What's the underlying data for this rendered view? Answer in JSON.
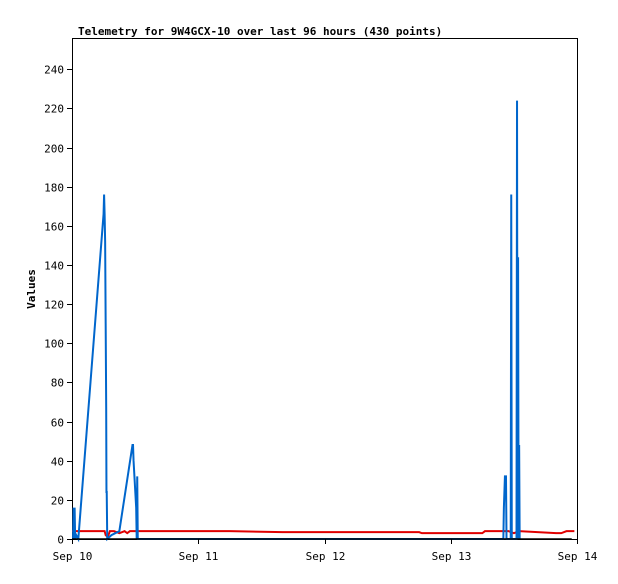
{
  "chart_data": {
    "type": "line",
    "title": "Telemetry for 9W4GCX-10 over last 96 hours (430 points)",
    "ylabel": "Values",
    "xlabel": "",
    "ylim": [
      0,
      256
    ],
    "xlim": [
      0,
      96
    ],
    "yticks": [
      0,
      20,
      40,
      60,
      80,
      100,
      120,
      140,
      160,
      180,
      200,
      220,
      240
    ],
    "xticks": [
      {
        "value": 0,
        "label": "Sep 10"
      },
      {
        "value": 24,
        "label": "Sep 11"
      },
      {
        "value": 48,
        "label": "Sep 12"
      },
      {
        "value": 72,
        "label": "Sep 13"
      },
      {
        "value": 96,
        "label": "Sep 14"
      }
    ],
    "grid": false,
    "legend": "none",
    "series": [
      {
        "color": "#0066cc",
        "points": [
          [
            0.2,
            0
          ],
          [
            0.3,
            16
          ],
          [
            0.4,
            0
          ],
          [
            0.5,
            16
          ],
          [
            0.6,
            0
          ],
          [
            0.8,
            2
          ],
          [
            1.2,
            0
          ],
          [
            6.0,
            166
          ],
          [
            6.1,
            176
          ],
          [
            6.2,
            166
          ],
          [
            6.3,
            152
          ],
          [
            6.4,
            110
          ],
          [
            6.5,
            67
          ],
          [
            6.55,
            24
          ],
          [
            6.6,
            24
          ],
          [
            6.7,
            0
          ],
          [
            7.5,
            2
          ],
          [
            9.0,
            4
          ],
          [
            11.5,
            48
          ],
          [
            11.6,
            48
          ],
          [
            11.7,
            40
          ],
          [
            12.2,
            16
          ],
          [
            12.3,
            0
          ],
          [
            12.4,
            32
          ],
          [
            12.5,
            0
          ],
          [
            82.0,
            0
          ],
          [
            82.1,
            16
          ],
          [
            82.3,
            32
          ],
          [
            82.5,
            32
          ],
          [
            82.6,
            0
          ],
          [
            83.4,
            0
          ],
          [
            83.5,
            176
          ],
          [
            83.6,
            0
          ],
          [
            84.5,
            0
          ],
          [
            84.6,
            224
          ],
          [
            84.7,
            0
          ],
          [
            84.8,
            144
          ],
          [
            84.9,
            0
          ],
          [
            85.0,
            48
          ],
          [
            85.1,
            0
          ]
        ]
      },
      {
        "color": "#e00000",
        "points": [
          [
            0.0,
            4
          ],
          [
            6.2,
            4
          ],
          [
            6.4,
            2
          ],
          [
            6.8,
            1
          ],
          [
            7.2,
            4
          ],
          [
            8.0,
            4
          ],
          [
            9.0,
            3
          ],
          [
            10.0,
            4
          ],
          [
            10.5,
            3
          ],
          [
            11.0,
            4
          ],
          [
            30.0,
            4
          ],
          [
            40.0,
            3.5
          ],
          [
            66.0,
            3.5
          ],
          [
            66.5,
            3
          ],
          [
            78.0,
            3
          ],
          [
            78.5,
            4
          ],
          [
            83.0,
            4
          ],
          [
            84.0,
            3
          ],
          [
            85.0,
            4
          ],
          [
            92.0,
            3
          ],
          [
            93.0,
            3
          ],
          [
            94.0,
            4
          ],
          [
            95.5,
            4
          ]
        ]
      },
      {
        "color": "#000000",
        "points": [
          [
            0.0,
            0
          ],
          [
            95.0,
            0
          ]
        ]
      }
    ]
  }
}
